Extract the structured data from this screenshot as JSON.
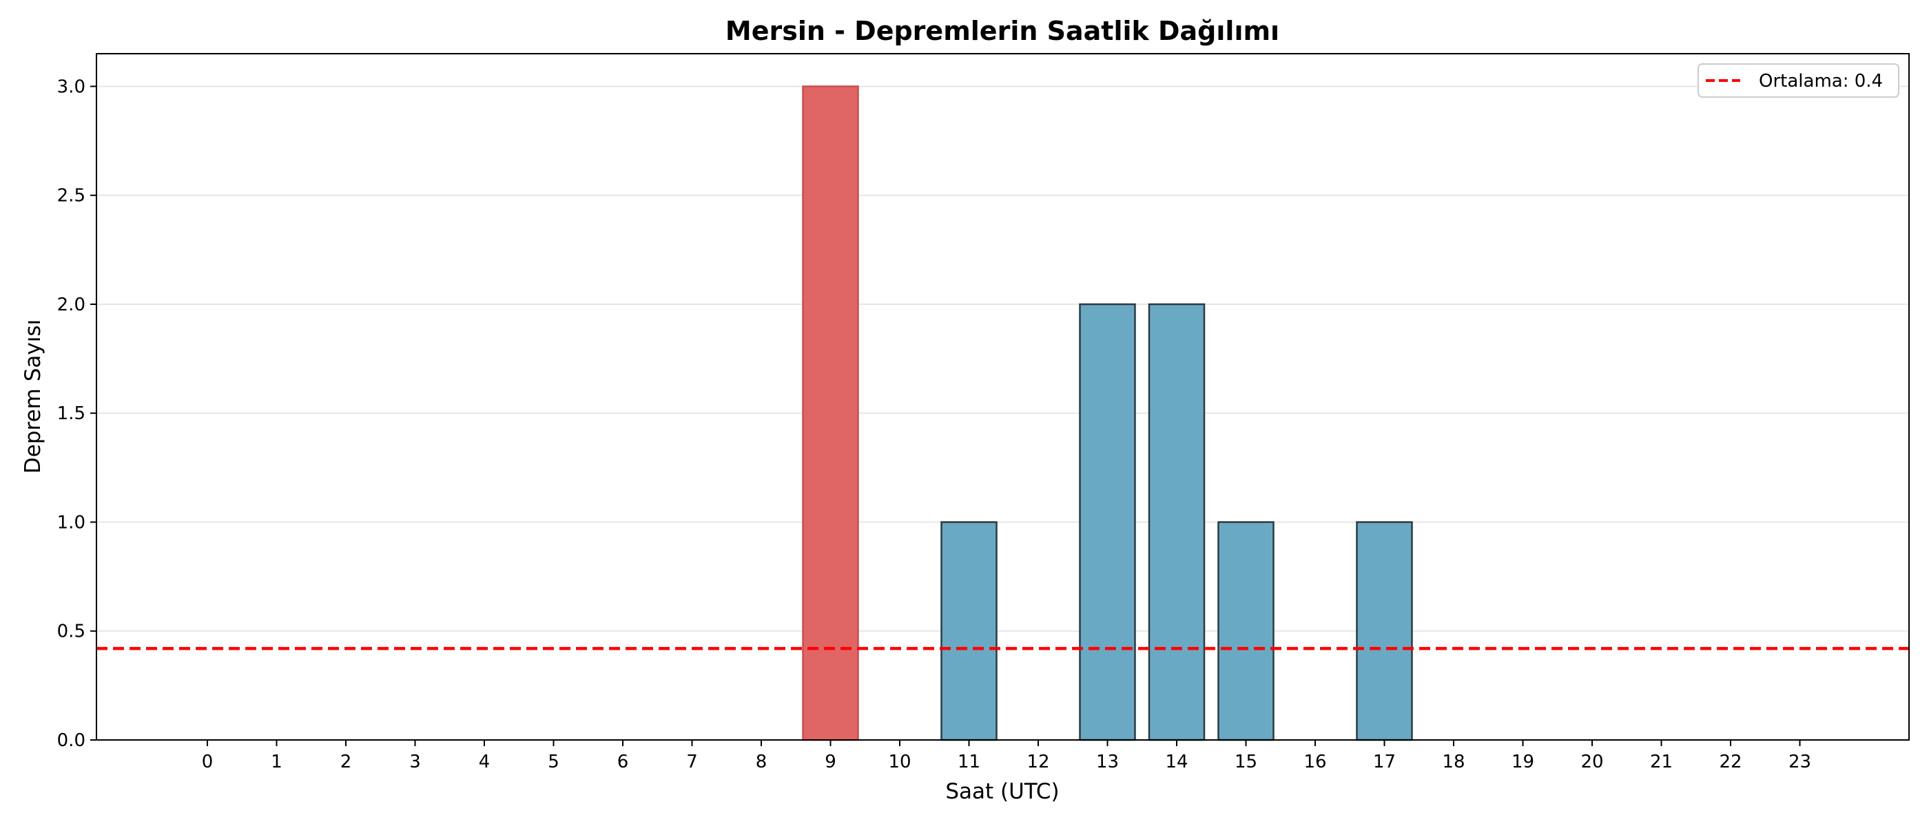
{
  "chart_data": {
    "type": "bar",
    "title": "Mersin - Depremlerin Saatlik Dağılımı",
    "xlabel": "Saat (UTC)",
    "ylabel": "Deprem Sayısı",
    "categories": [
      "0",
      "1",
      "2",
      "3",
      "4",
      "5",
      "6",
      "7",
      "8",
      "9",
      "10",
      "11",
      "12",
      "13",
      "14",
      "15",
      "16",
      "17",
      "18",
      "19",
      "20",
      "21",
      "22",
      "23"
    ],
    "values": [
      0,
      0,
      0,
      0,
      0,
      0,
      0,
      0,
      0,
      3,
      0,
      1,
      0,
      2,
      2,
      1,
      0,
      1,
      0,
      0,
      0,
      0,
      0,
      0
    ],
    "ylim": [
      0,
      3.15
    ],
    "yticks": [
      "0.0",
      "0.5",
      "1.0",
      "1.5",
      "2.0",
      "2.5",
      "3.0"
    ],
    "highlight_category": "9",
    "mean_line": {
      "value": 0.42,
      "label": "Ortalama: 0.4"
    },
    "colors": {
      "bar": "#6aa9c4",
      "highlight": "#e06666",
      "bar_edge": "#2b3a42",
      "mean_line": "#ff0000",
      "grid": "#e6e6e6"
    },
    "grid": "y",
    "legend_position": "top-right"
  }
}
